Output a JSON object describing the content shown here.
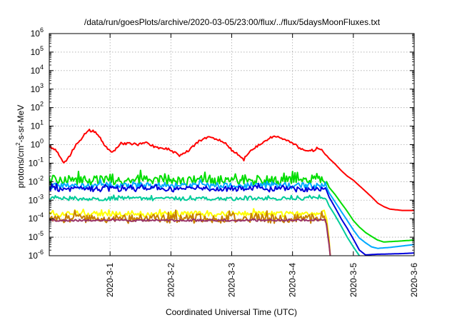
{
  "chart_data": {
    "type": "line",
    "title": "/data/run/goesPlots/archive/2020-03-05/23:00/flux/../flux/5daysMoonFluxes.txt",
    "xlabel": "Coordinated Universal Time (UTC)",
    "ylabel": {
      "base": "protons/cm",
      "sup": "2",
      "rest": "-s-sr-MeV"
    },
    "x_ticks": [
      "2020-3-1",
      "2020-3-2",
      "2020-3-3",
      "2020-3-4",
      "2020-3-5",
      "2020-3-6"
    ],
    "x_tick_days": [
      1,
      2,
      3,
      4,
      5,
      6
    ],
    "xlim_days": [
      0,
      6
    ],
    "y_scale": "log",
    "ylim": [
      1e-06,
      1000000.0
    ],
    "y_tick_exponents": [
      -6,
      -5,
      -4,
      -3,
      -2,
      -1,
      0,
      1,
      2,
      3,
      4,
      5,
      6
    ],
    "y_tick_base": "10",
    "grid": true,
    "series": [
      {
        "color": "#ff0000",
        "noise": 0.12,
        "points": [
          [
            0,
            0.8
          ],
          [
            0.1,
            0.5
          ],
          [
            0.25,
            0.1
          ],
          [
            0.35,
            0.3
          ],
          [
            0.45,
            1.0
          ],
          [
            0.55,
            2.5
          ],
          [
            0.65,
            6
          ],
          [
            0.75,
            5
          ],
          [
            0.85,
            2
          ],
          [
            0.95,
            0.6
          ],
          [
            1.05,
            0.4
          ],
          [
            1.15,
            1.0
          ],
          [
            1.3,
            1.2
          ],
          [
            1.45,
            1.0
          ],
          [
            1.6,
            1.2
          ],
          [
            1.75,
            0.7
          ],
          [
            1.9,
            0.6
          ],
          [
            2.05,
            0.4
          ],
          [
            2.15,
            0.25
          ],
          [
            2.3,
            0.5
          ],
          [
            2.45,
            1.5
          ],
          [
            2.6,
            2.5
          ],
          [
            2.75,
            2.0
          ],
          [
            2.9,
            1.2
          ],
          [
            3.0,
            0.5
          ],
          [
            3.1,
            0.3
          ],
          [
            3.2,
            0.15
          ],
          [
            3.3,
            0.4
          ],
          [
            3.45,
            1.0
          ],
          [
            3.6,
            2.0
          ],
          [
            3.7,
            3.0
          ],
          [
            3.85,
            2.0
          ],
          [
            4.0,
            1.2
          ],
          [
            4.1,
            0.7
          ],
          [
            4.25,
            0.4
          ],
          [
            4.35,
            0.5
          ],
          [
            4.45,
            0.6
          ],
          [
            4.5,
            0.45
          ],
          [
            4.6,
            0.18
          ],
          [
            4.7,
            0.09
          ],
          [
            4.8,
            0.04
          ],
          [
            4.9,
            0.02
          ],
          [
            5.0,
            0.012
          ],
          [
            5.1,
            0.006
          ],
          [
            5.2,
            0.003
          ],
          [
            5.3,
            0.0015
          ],
          [
            5.4,
            0.0007
          ],
          [
            5.5,
            0.00045
          ],
          [
            5.6,
            0.00033
          ],
          [
            5.8,
            0.00028
          ],
          [
            6.0,
            0.00028
          ]
        ]
      },
      {
        "color": "#00dd00",
        "noise": 0.55,
        "points": [
          [
            0,
            0.012
          ],
          [
            4.45,
            0.012
          ],
          [
            4.55,
            0.012
          ],
          [
            4.6,
            0.005
          ],
          [
            4.7,
            0.002
          ],
          [
            4.8,
            0.0007
          ],
          [
            4.9,
            0.00025
          ],
          [
            5.0,
            8e-05
          ],
          [
            5.1,
            3.5e-05
          ],
          [
            5.2,
            1.8e-05
          ],
          [
            5.3,
            1.1e-05
          ],
          [
            5.4,
            7e-06
          ],
          [
            5.5,
            5.5e-06
          ],
          [
            5.7,
            6e-06
          ],
          [
            6.0,
            7e-06
          ]
        ]
      },
      {
        "color": "#00aaff",
        "noise": 0.35,
        "points": [
          [
            0,
            0.006
          ],
          [
            4.45,
            0.006
          ],
          [
            4.55,
            0.006
          ],
          [
            4.6,
            0.0025
          ],
          [
            4.7,
            0.0008
          ],
          [
            4.8,
            0.00025
          ],
          [
            4.9,
            8e-05
          ],
          [
            5.0,
            2.5e-05
          ],
          [
            5.1,
            9e-06
          ],
          [
            5.2,
            5e-06
          ],
          [
            5.3,
            3e-06
          ],
          [
            5.4,
            2.5e-06
          ],
          [
            5.6,
            2.8e-06
          ],
          [
            6.0,
            4e-06
          ]
        ]
      },
      {
        "color": "#0000dd",
        "noise": 0.3,
        "points": [
          [
            0,
            0.004
          ],
          [
            4.45,
            0.004
          ],
          [
            4.55,
            0.004
          ],
          [
            4.6,
            0.0015
          ],
          [
            4.7,
            0.0004
          ],
          [
            4.8,
            0.0001
          ],
          [
            4.9,
            3e-05
          ],
          [
            5.0,
            8e-06
          ],
          [
            5.1,
            2e-06
          ],
          [
            5.2,
            1.1e-06
          ],
          [
            5.4,
            1.2e-06
          ],
          [
            5.8,
            1.3e-06
          ],
          [
            6.0,
            1.4e-06
          ]
        ]
      },
      {
        "color": "#00cc99",
        "noise": 0.2,
        "points": [
          [
            0,
            0.0012
          ],
          [
            4.45,
            0.0012
          ],
          [
            4.55,
            0.0012
          ],
          [
            4.6,
            0.0005
          ],
          [
            4.7,
            0.00015
          ],
          [
            4.8,
            4e-05
          ],
          [
            4.9,
            1e-05
          ],
          [
            5.0,
            3e-06
          ],
          [
            5.1,
            1e-06
          ]
        ]
      },
      {
        "color": "#ffff00",
        "noise": 0.3,
        "points": [
          [
            0,
            0.00018
          ],
          [
            4.45,
            0.00018
          ],
          [
            4.55,
            0.00018
          ],
          [
            4.57,
            5e-05
          ],
          [
            4.6,
            8e-06
          ],
          [
            4.62,
            1e-06
          ]
        ]
      },
      {
        "color": "#c88000",
        "noise": 0.5,
        "points": [
          [
            0,
            0.0001
          ],
          [
            4.45,
            0.0001
          ],
          [
            4.55,
            0.0001
          ],
          [
            4.57,
            3e-05
          ],
          [
            4.6,
            5e-06
          ],
          [
            4.62,
            1e-06
          ]
        ]
      },
      {
        "color": "#993366",
        "noise": 0.1,
        "points": [
          [
            0,
            8e-05
          ],
          [
            4.45,
            8e-05
          ],
          [
            4.55,
            8e-05
          ],
          [
            4.57,
            2e-05
          ],
          [
            4.6,
            4e-06
          ],
          [
            4.62,
            1e-06
          ]
        ]
      }
    ]
  }
}
